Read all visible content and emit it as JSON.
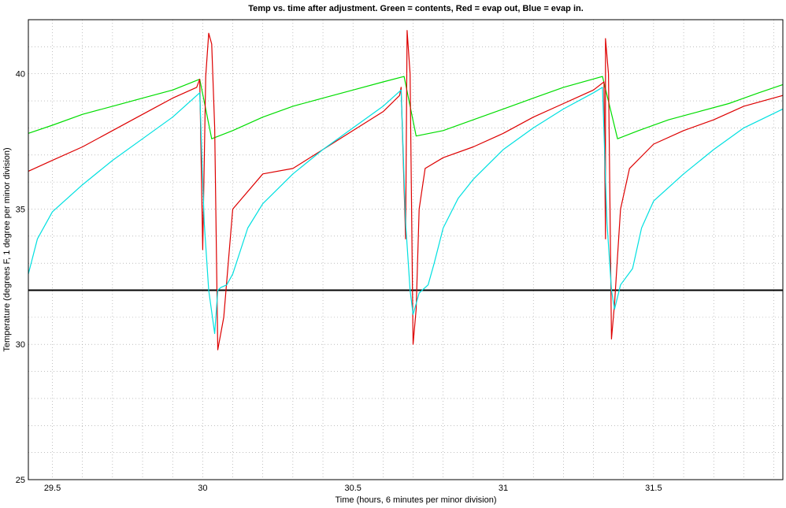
{
  "chart_data": {
    "type": "line",
    "title": "Temp vs. time after adjustment.  Green = contents, Red = evap out, Blue = evap in.",
    "xlabel": "Time (hours, 6 minutes per minor division)",
    "ylabel": "Temperature (degrees F, 1 degree per minor division)",
    "xlim": [
      29.42,
      31.93
    ],
    "ylim": [
      25,
      42
    ],
    "x_ticks": [
      29.5,
      30,
      30.5,
      31,
      31.5
    ],
    "x_tick_labels": [
      "29.5",
      "30",
      "30.5",
      "31",
      "31.5"
    ],
    "y_ticks": [
      25,
      30,
      35,
      40
    ],
    "y_tick_labels": [
      "25",
      "30",
      "35",
      "40"
    ],
    "x_minor_step": 0.1,
    "y_minor_step": 1,
    "grid": true,
    "reference_line": {
      "y": 32,
      "color": "#000000"
    },
    "series": [
      {
        "color": "#00dd00",
        "x": [
          29.42,
          29.5,
          29.6,
          29.7,
          29.8,
          29.9,
          29.99,
          30.03,
          30.1,
          30.2,
          30.3,
          30.4,
          30.5,
          30.6,
          30.67,
          30.71,
          30.8,
          30.9,
          31.0,
          31.1,
          31.2,
          31.33,
          31.38,
          31.45,
          31.55,
          31.65,
          31.75,
          31.85,
          31.93
        ],
        "y": [
          37.8,
          38.1,
          38.5,
          38.8,
          39.1,
          39.4,
          39.8,
          37.6,
          37.9,
          38.4,
          38.8,
          39.1,
          39.4,
          39.7,
          39.9,
          37.7,
          37.9,
          38.3,
          38.7,
          39.1,
          39.5,
          39.9,
          37.6,
          37.9,
          38.3,
          38.6,
          38.9,
          39.3,
          39.6
        ]
      },
      {
        "color": "#dd0000",
        "x": [
          29.42,
          29.5,
          29.6,
          29.7,
          29.8,
          29.9,
          29.98,
          29.99,
          30.0,
          30.01,
          30.02,
          30.03,
          30.04,
          30.05,
          30.07,
          30.1,
          30.2,
          30.3,
          30.4,
          30.5,
          30.6,
          30.655,
          30.66,
          30.675,
          30.68,
          30.69,
          30.7,
          30.71,
          30.72,
          30.74,
          30.8,
          30.9,
          31.0,
          31.1,
          31.2,
          31.3,
          31.335,
          31.34,
          31.34,
          31.35,
          31.36,
          31.37,
          31.39,
          31.42,
          31.5,
          31.6,
          31.7,
          31.8,
          31.93
        ],
        "y": [
          36.4,
          36.8,
          37.3,
          37.9,
          38.5,
          39.1,
          39.5,
          39.8,
          33.5,
          39.9,
          41.5,
          41.1,
          38.0,
          29.8,
          31.0,
          35.0,
          36.3,
          36.5,
          37.2,
          37.9,
          38.6,
          39.2,
          39.5,
          33.9,
          41.6,
          40.0,
          30.0,
          31.3,
          35.0,
          36.5,
          36.9,
          37.3,
          37.8,
          38.4,
          38.9,
          39.4,
          39.7,
          33.9,
          41.3,
          40.0,
          30.2,
          31.5,
          35.0,
          36.5,
          37.4,
          37.9,
          38.3,
          38.8,
          39.2
        ]
      },
      {
        "color": "#00e0e0",
        "x": [
          29.42,
          29.45,
          29.5,
          29.6,
          29.7,
          29.8,
          29.9,
          29.99,
          30.005,
          30.02,
          30.04,
          30.05,
          30.06,
          30.08,
          30.1,
          30.15,
          30.2,
          30.3,
          30.4,
          30.5,
          30.6,
          30.66,
          30.675,
          30.69,
          30.7,
          30.72,
          30.75,
          30.77,
          30.8,
          30.85,
          30.9,
          31.0,
          31.1,
          31.2,
          31.3,
          31.33,
          31.345,
          31.36,
          31.37,
          31.39,
          31.43,
          31.46,
          31.5,
          31.6,
          31.7,
          31.8,
          31.93
        ],
        "y": [
          32.6,
          33.9,
          34.9,
          35.9,
          36.8,
          37.6,
          38.4,
          39.3,
          34.5,
          32.0,
          30.4,
          32.0,
          32.1,
          32.2,
          32.6,
          34.3,
          35.2,
          36.3,
          37.2,
          38.0,
          38.8,
          39.4,
          34.5,
          32.0,
          31.1,
          31.9,
          32.2,
          33.0,
          34.3,
          35.4,
          36.1,
          37.2,
          38.0,
          38.7,
          39.3,
          39.5,
          34.5,
          32.0,
          31.3,
          32.2,
          32.8,
          34.3,
          35.3,
          36.3,
          37.2,
          38.0,
          38.7
        ]
      }
    ]
  }
}
